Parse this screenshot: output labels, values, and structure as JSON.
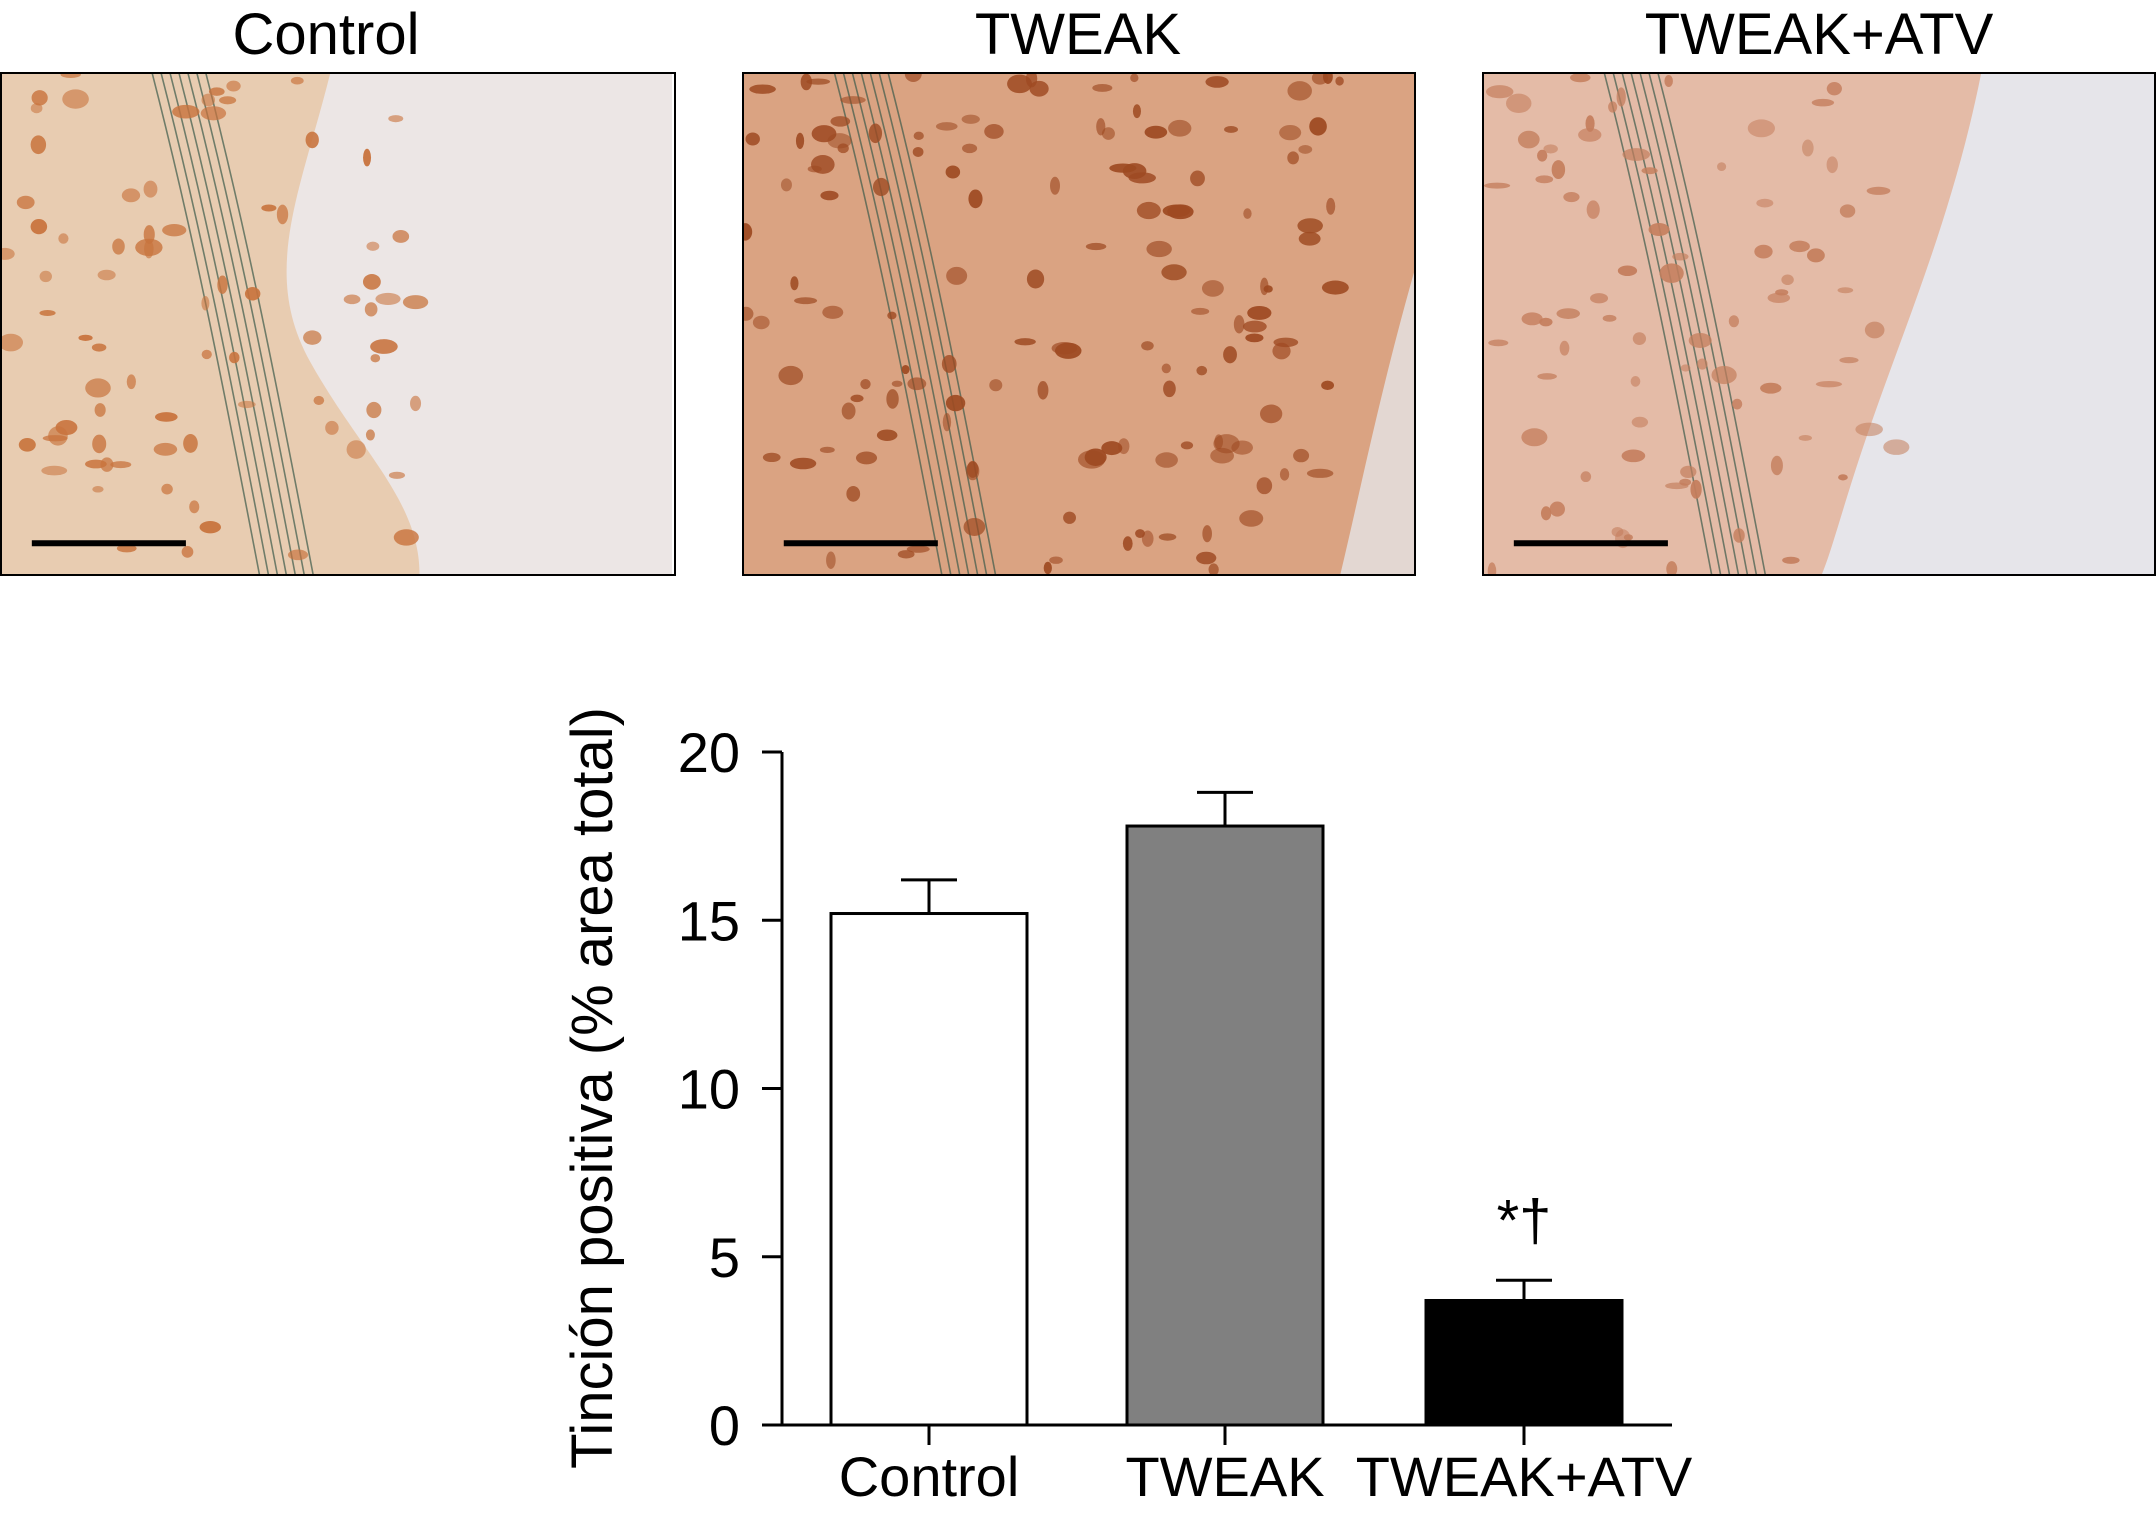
{
  "panels": [
    {
      "title": "Control",
      "bg": "#ece6e5",
      "tissue": "#e8c7a8",
      "cell": "#c8733d"
    },
    {
      "title": "TWEAK",
      "bg": "#e3d7d2",
      "tissue": "#d89a74",
      "cell": "#9e4a22"
    },
    {
      "title": "TWEAK+ATV",
      "bg": "#e6e5ea",
      "tissue": "#e3b49b",
      "cell": "#c47e5d"
    }
  ],
  "chart_data": {
    "type": "bar",
    "categories": [
      "Control",
      "TWEAK",
      "TWEAK+ATV"
    ],
    "values": [
      15.2,
      17.8,
      3.7
    ],
    "errors": [
      1.0,
      1.0,
      0.6
    ],
    "colors": [
      "#ffffff",
      "#808080",
      "#000000"
    ],
    "annotations": [
      "",
      "",
      "*†"
    ],
    "ylabel": "Tinción positiva (% area total)",
    "ylim": [
      0,
      20
    ],
    "yticks": [
      0,
      5,
      10,
      15,
      20
    ],
    "grid": false
  }
}
